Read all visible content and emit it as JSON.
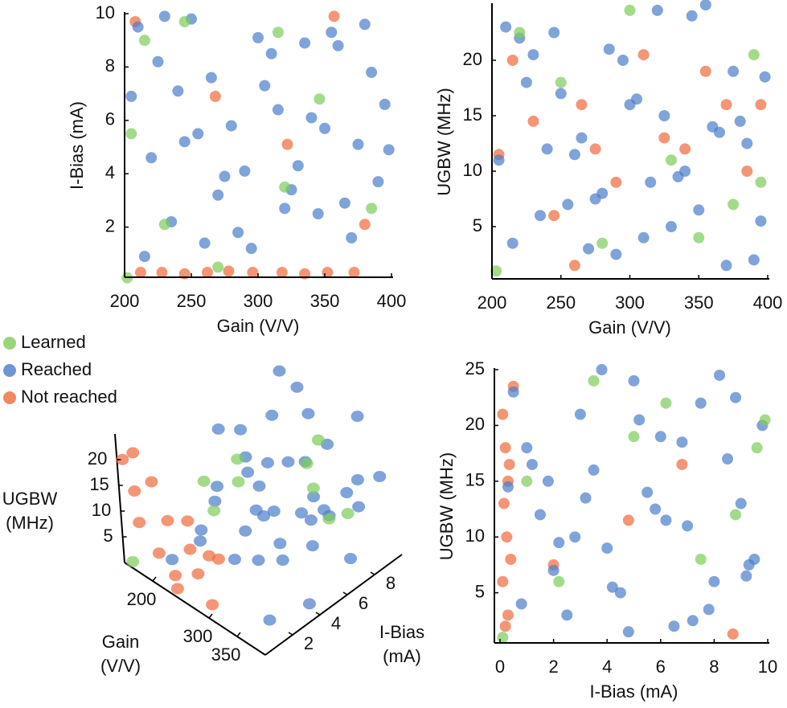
{
  "chart_data": [
    {
      "type": "scatter",
      "xlabel": "Gain (V/V)",
      "ylabel": "I-Bias (mA)",
      "xlim": [
        200,
        400
      ],
      "ylim": [
        0,
        10
      ],
      "xticks": [
        200,
        250,
        300,
        350,
        400
      ],
      "yticks": [
        2,
        4,
        6,
        8,
        10
      ],
      "series": [
        {
          "color": "#7dcc5a",
          "x": [
            202,
            215,
            245,
            230,
            320,
            346,
            385,
            205,
            270,
            315
          ],
          "y": [
            0.1,
            9.0,
            9.7,
            2.1,
            3.5,
            6.8,
            2.7,
            5.5,
            0.5,
            9.3
          ]
        },
        {
          "color": "#4a7cc9",
          "x": [
            210,
            225,
            240,
            255,
            270,
            285,
            300,
            315,
            330,
            345,
            360,
            375,
            390,
            205,
            220,
            235,
            250,
            265,
            280,
            295,
            310,
            325,
            340,
            355,
            370,
            385,
            398,
            215,
            245,
            275,
            305,
            335,
            365,
            395,
            230,
            260,
            290,
            320,
            350,
            380
          ],
          "y": [
            9.5,
            8.2,
            7.1,
            5.5,
            3.2,
            1.8,
            9.1,
            6.4,
            4.3,
            2.5,
            8.8,
            5.1,
            3.7,
            6.9,
            4.6,
            2.2,
            9.8,
            7.6,
            5.8,
            1.2,
            8.5,
            3.4,
            6.1,
            9.3,
            1.6,
            7.8,
            4.9,
            0.9,
            5.2,
            3.9,
            7.3,
            8.9,
            2.9,
            6.6,
            9.9,
            1.4,
            4.1,
            2.7,
            5.7,
            9.6
          ]
        },
        {
          "color": "#f0693a",
          "x": [
            212,
            228,
            245,
            262,
            278,
            296,
            318,
            335,
            352,
            372,
            268,
            322,
            380,
            357,
            208
          ],
          "y": [
            0.3,
            0.3,
            0.25,
            0.3,
            0.35,
            0.3,
            0.3,
            0.25,
            0.3,
            0.3,
            6.9,
            5.1,
            2.1,
            9.9,
            9.7
          ]
        }
      ]
    },
    {
      "type": "scatter",
      "xlabel": "Gain (V/V)",
      "ylabel": "UGBW (MHz)",
      "xlim": [
        200,
        400
      ],
      "ylim": [
        0,
        25
      ],
      "xticks": [
        200,
        250,
        300,
        350,
        400
      ],
      "yticks": [
        5,
        10,
        15,
        20
      ],
      "series": [
        {
          "color": "#7dcc5a",
          "x": [
            203,
            220,
            250,
            280,
            300,
            330,
            350,
            375,
            390,
            395
          ],
          "y": [
            1,
            22.5,
            18,
            3.5,
            24.5,
            11,
            4,
            7,
            20.5,
            9
          ]
        },
        {
          "color": "#4a7cc9",
          "x": [
            210,
            225,
            240,
            255,
            270,
            285,
            300,
            315,
            330,
            345,
            360,
            375,
            390,
            205,
            220,
            235,
            250,
            265,
            280,
            295,
            310,
            325,
            340,
            355,
            370,
            385,
            398,
            215,
            245,
            275,
            305,
            335,
            365,
            395,
            230,
            260,
            290,
            320,
            350,
            380
          ],
          "y": [
            23,
            18,
            12,
            7,
            3,
            21,
            16,
            9,
            5,
            24,
            14,
            19,
            2,
            11,
            22,
            6,
            17,
            13,
            8,
            20,
            4,
            15,
            10,
            25,
            1.5,
            12.5,
            18.5,
            3.5,
            22.5,
            7.5,
            16.5,
            9.5,
            13.5,
            5.5,
            20.5,
            11.5,
            2.5,
            24.5,
            6.5,
            14.5
          ]
        },
        {
          "color": "#f0693a",
          "x": [
            205,
            215,
            230,
            245,
            260,
            275,
            290,
            310,
            325,
            340,
            355,
            370,
            385,
            395,
            265
          ],
          "y": [
            11.5,
            20,
            14.5,
            6,
            1.5,
            12,
            9,
            20.5,
            13,
            12,
            19,
            16,
            10,
            16,
            16
          ]
        }
      ]
    },
    {
      "type": "scatter3d",
      "xlabel": "Gain (V/V)",
      "ylabel": "I-Bias (mA)",
      "zlabel": "UGBW (MHz)",
      "xlim": [
        150,
        400
      ],
      "ylim": [
        0,
        10
      ],
      "zlim": [
        0,
        25
      ],
      "xticks": [
        200,
        300,
        350
      ],
      "yticks": [
        2,
        4,
        6,
        8
      ],
      "zticks": [
        5,
        10,
        15,
        20
      ],
      "series": [
        {
          "name": "Learned",
          "color": "#7dcc5a",
          "x": [
            160,
            230,
            300,
            340,
            380,
            260,
            320,
            390,
            200,
            280
          ],
          "y": [
            0.2,
            3.5,
            8.5,
            6.1,
            7.2,
            9.4,
            2.0,
            5.5,
            6.5,
            1.1
          ],
          "z": [
            0.5,
            9,
            18,
            21,
            12,
            4,
            24,
            15,
            11,
            23
          ]
        },
        {
          "name": "Reached",
          "color": "#4a7cc9",
          "x": [
            210,
            225,
            240,
            255,
            270,
            285,
            300,
            315,
            330,
            345,
            360,
            375,
            390,
            205,
            220,
            235,
            250,
            265,
            280,
            295,
            310,
            325,
            340,
            355,
            370,
            385,
            398,
            215,
            245,
            275,
            305,
            335,
            365,
            395,
            230,
            260,
            290,
            320,
            350,
            380
          ],
          "y": [
            9.5,
            8.2,
            7.1,
            5.5,
            3.2,
            1.8,
            9.1,
            6.4,
            4.3,
            2.5,
            8.8,
            5.1,
            3.7,
            6.9,
            4.6,
            2.2,
            9.8,
            7.6,
            5.8,
            1.2,
            8.5,
            3.4,
            6.1,
            9.3,
            1.6,
            7.8,
            4.9,
            0.9,
            5.2,
            3.9,
            7.3,
            8.9,
            2.9,
            6.6,
            9.9,
            1.4,
            4.1,
            2.7,
            5.7,
            9.6
          ],
          "z": [
            23,
            18,
            12,
            7,
            3,
            21,
            16,
            9,
            5,
            24,
            14,
            19,
            2,
            11,
            22,
            6,
            17,
            13,
            8,
            20,
            4,
            15,
            10,
            25,
            1.5,
            12.5,
            18.5,
            3.5,
            22.5,
            7.5,
            16.5,
            9.5,
            13.5,
            5.5,
            20.5,
            11.5,
            2.5,
            24.5,
            6.5,
            14.5
          ]
        },
        {
          "name": "Not reached",
          "color": "#f0693a",
          "x": [
            155,
            165,
            175,
            190,
            205,
            220,
            235,
            250,
            260,
            275,
            290,
            300,
            310,
            170,
            240
          ],
          "y": [
            0.2,
            0.5,
            0.3,
            0.8,
            0.4,
            0.6,
            0.3,
            0.9,
            0.5,
            0.4,
            0.7,
            0.3,
            0.6,
            0.4,
            0.2
          ],
          "z": [
            20,
            14,
            9,
            17,
            5,
            12,
            3,
            8,
            15,
            6,
            10,
            2,
            11,
            22,
            1
          ]
        }
      ]
    },
    {
      "type": "scatter",
      "xlabel": "I-Bias (mA)",
      "ylabel": "UGBW (MHz)",
      "xlim": [
        0,
        10
      ],
      "ylim": [
        0,
        25
      ],
      "xticks": [
        0,
        2,
        4,
        6,
        8,
        10
      ],
      "yticks": [
        5,
        10,
        15,
        20,
        25
      ],
      "series": [
        {
          "color": "#7dcc5a",
          "x": [
            0.1,
            1.0,
            2.2,
            3.5,
            5.0,
            6.2,
            7.5,
            8.8,
            9.6,
            9.9
          ],
          "y": [
            1,
            15,
            6,
            24,
            19,
            22,
            8,
            12,
            18,
            20.5
          ]
        },
        {
          "color": "#4a7cc9",
          "x": [
            0.5,
            1.0,
            1.5,
            2.0,
            2.5,
            3.0,
            3.5,
            4.0,
            4.5,
            5.0,
            5.5,
            6.0,
            6.5,
            7.0,
            7.5,
            8.0,
            8.5,
            9.0,
            9.5,
            9.8,
            0.8,
            1.8,
            2.8,
            3.8,
            4.8,
            5.8,
            6.8,
            7.8,
            8.8,
            9.3,
            1.2,
            2.2,
            3.2,
            4.2,
            5.2,
            6.2,
            7.2,
            8.2,
            9.2,
            0.3
          ],
          "y": [
            23,
            18,
            12,
            7,
            3,
            21,
            16,
            9,
            5,
            24,
            14,
            19,
            2,
            11,
            22,
            6,
            17,
            13,
            8,
            20,
            4,
            15,
            10,
            25,
            1.5,
            12.5,
            18.5,
            3.5,
            22.5,
            7.5,
            16.5,
            9.5,
            13.5,
            5.5,
            20.5,
            11.5,
            2.5,
            24.5,
            6.5,
            14.5
          ]
        },
        {
          "color": "#f0693a",
          "x": [
            0.1,
            0.2,
            0.3,
            0.15,
            0.25,
            0.4,
            0.1,
            0.3,
            0.2,
            0.5,
            0.35,
            4.8,
            6.8,
            2.0,
            8.7
          ],
          "y": [
            21,
            18,
            15,
            13,
            10,
            8,
            6,
            3,
            2,
            23.5,
            16.5,
            11.5,
            16.5,
            7.5,
            1.3
          ]
        }
      ]
    }
  ]
}
